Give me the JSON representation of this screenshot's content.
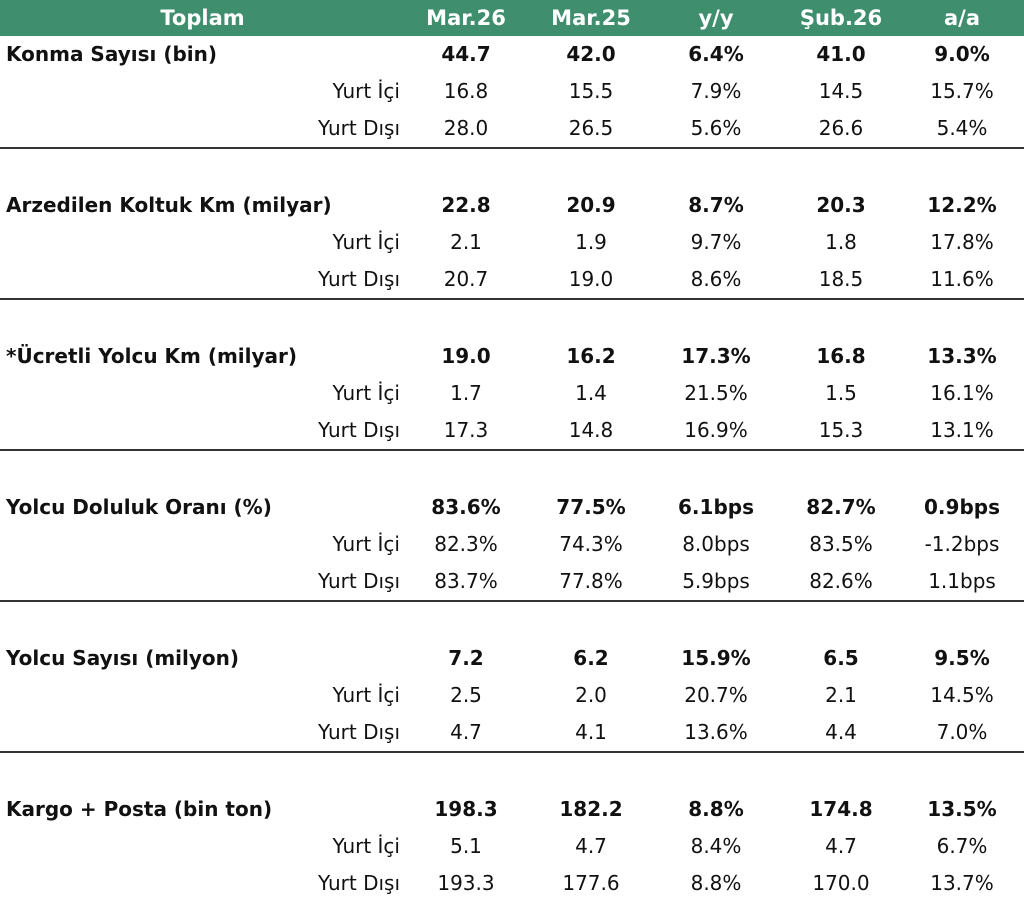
{
  "header": {
    "title": "Toplam",
    "cols": [
      "Mar.26",
      "Mar.25",
      "y/y",
      "Şub.26",
      "a/a"
    ]
  },
  "groups": [
    {
      "label": "Konma Sayısı (bin)",
      "values": [
        "44.7",
        "42.0",
        "6.4%",
        "41.0",
        "9.0%"
      ],
      "subs": [
        {
          "label": "Yurt İçi",
          "values": [
            "16.8",
            "15.5",
            "7.9%",
            "14.5",
            "15.7%"
          ]
        },
        {
          "label": "Yurt Dışı",
          "values": [
            "28.0",
            "26.5",
            "5.6%",
            "26.6",
            "5.4%"
          ]
        }
      ]
    },
    {
      "label": "Arzedilen Koltuk Km (milyar)",
      "values": [
        "22.8",
        "20.9",
        "8.7%",
        "20.3",
        "12.2%"
      ],
      "subs": [
        {
          "label": "Yurt İçi",
          "values": [
            "2.1",
            "1.9",
            "9.7%",
            "1.8",
            "17.8%"
          ]
        },
        {
          "label": "Yurt Dışı",
          "values": [
            "20.7",
            "19.0",
            "8.6%",
            "18.5",
            "11.6%"
          ]
        }
      ]
    },
    {
      "label": "*Ücretli Yolcu Km (milyar)",
      "values": [
        "19.0",
        "16.2",
        "17.3%",
        "16.8",
        "13.3%"
      ],
      "subs": [
        {
          "label": "Yurt İçi",
          "values": [
            "1.7",
            "1.4",
            "21.5%",
            "1.5",
            "16.1%"
          ]
        },
        {
          "label": "Yurt Dışı",
          "values": [
            "17.3",
            "14.8",
            "16.9%",
            "15.3",
            "13.1%"
          ]
        }
      ]
    },
    {
      "label": "Yolcu Doluluk Oranı (%)",
      "values": [
        "83.6%",
        "77.5%",
        "6.1bps",
        "82.7%",
        "0.9bps"
      ],
      "subs": [
        {
          "label": "Yurt İçi",
          "values": [
            "82.3%",
            "74.3%",
            "8.0bps",
            "83.5%",
            "-1.2bps"
          ]
        },
        {
          "label": "Yurt Dışı",
          "values": [
            "83.7%",
            "77.8%",
            "5.9bps",
            "82.6%",
            "1.1bps"
          ]
        }
      ]
    },
    {
      "label": "Yolcu Sayısı (milyon)",
      "values": [
        "7.2",
        "6.2",
        "15.9%",
        "6.5",
        "9.5%"
      ],
      "subs": [
        {
          "label": "Yurt İçi",
          "values": [
            "2.5",
            "2.0",
            "20.7%",
            "2.1",
            "14.5%"
          ]
        },
        {
          "label": "Yurt Dışı",
          "values": [
            "4.7",
            "4.1",
            "13.6%",
            "4.4",
            "7.0%"
          ]
        }
      ]
    },
    {
      "label": "Kargo + Posta (bin ton)",
      "values": [
        "198.3",
        "182.2",
        "8.8%",
        "174.8",
        "13.5%"
      ],
      "subs": [
        {
          "label": "Yurt İçi",
          "values": [
            "5.1",
            "4.7",
            "8.4%",
            "4.7",
            "6.7%"
          ]
        },
        {
          "label": "Yurt Dışı",
          "values": [
            "193.3",
            "177.6",
            "8.8%",
            "170.0",
            "13.7%"
          ]
        }
      ]
    }
  ]
}
